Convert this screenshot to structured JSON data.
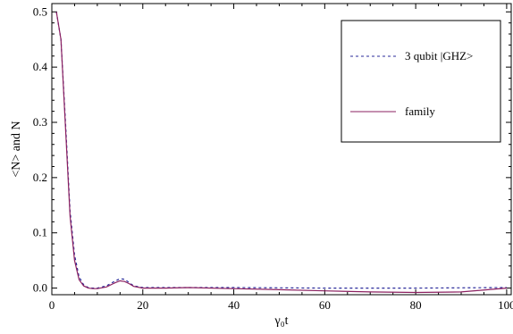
{
  "chart_data": {
    "type": "line",
    "xlabel": "γ₀t",
    "ylabel": "<N> and N",
    "xlim": [
      0,
      101
    ],
    "ylim": [
      -0.012,
      0.515
    ],
    "xticks": [
      "0",
      "20",
      "40",
      "60",
      "80",
      "100"
    ],
    "yticks": [
      "0.0",
      "0.1",
      "0.2",
      "0.3",
      "0.4",
      "0.5"
    ],
    "legend_position": "top-right",
    "grid": false,
    "series": [
      {
        "name": "3 qubit |GHZ>",
        "style": "dashed",
        "color": "#2a2a9a",
        "x": [
          1,
          2,
          3,
          4,
          5,
          6,
          7,
          8,
          9,
          10,
          12,
          14,
          15,
          16,
          17,
          18,
          20,
          25,
          30,
          40,
          60,
          80,
          100
        ],
        "y": [
          0.5,
          0.45,
          0.3,
          0.14,
          0.06,
          0.02,
          0.006,
          0.001,
          0.0,
          0.0,
          0.004,
          0.013,
          0.017,
          0.016,
          0.01,
          0.004,
          0.001,
          0.001,
          0.001,
          0.001,
          0.0,
          0.0,
          0.001
        ]
      },
      {
        "name": "family",
        "style": "solid",
        "color": "#8b2060",
        "x": [
          1,
          2,
          3,
          4,
          5,
          6,
          7,
          8,
          9,
          10,
          12,
          14,
          15,
          16,
          17,
          18,
          20,
          25,
          30,
          40,
          50,
          60,
          70,
          80,
          90,
          100
        ],
        "y": [
          0.5,
          0.45,
          0.29,
          0.13,
          0.05,
          0.015,
          0.004,
          0.0,
          -0.001,
          -0.001,
          0.002,
          0.01,
          0.013,
          0.012,
          0.008,
          0.003,
          0.0,
          0.0,
          0.001,
          -0.001,
          -0.003,
          -0.005,
          -0.007,
          -0.008,
          -0.007,
          0.0
        ]
      }
    ]
  }
}
